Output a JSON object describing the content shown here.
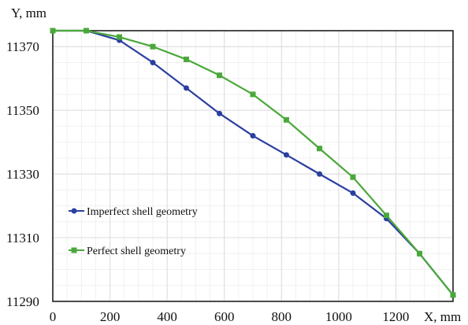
{
  "chart_data": {
    "type": "line",
    "title": "",
    "xlabel": "X, mm",
    "ylabel": "Y, mm",
    "xlim": [
      0,
      1400
    ],
    "ylim": [
      11290,
      11375
    ],
    "x_ticks": [
      0,
      200,
      400,
      600,
      800,
      1000,
      1200
    ],
    "y_ticks": [
      11290,
      11310,
      11330,
      11350,
      11370
    ],
    "grid": true,
    "legend_position": "left",
    "series": [
      {
        "name": "Imperfect shell geometry",
        "color": "#2b3fa0",
        "marker": "circle",
        "x": [
          0,
          117,
          233,
          350,
          467,
          583,
          700,
          817,
          933,
          1050,
          1167,
          1283,
          1400
        ],
        "y": [
          11375,
          11375,
          11372,
          11365,
          11357,
          11349,
          11342,
          11336,
          11330,
          11324,
          11316,
          11305,
          11292
        ]
      },
      {
        "name": "Perfect shell geometry",
        "color": "#4aa83a",
        "marker": "square",
        "x": [
          0,
          117,
          233,
          350,
          467,
          583,
          700,
          817,
          933,
          1050,
          1167,
          1283,
          1400
        ],
        "y": [
          11375,
          11375,
          11373,
          11370,
          11366,
          11361,
          11355,
          11347,
          11338,
          11329,
          11317,
          11305,
          11292
        ]
      }
    ]
  }
}
